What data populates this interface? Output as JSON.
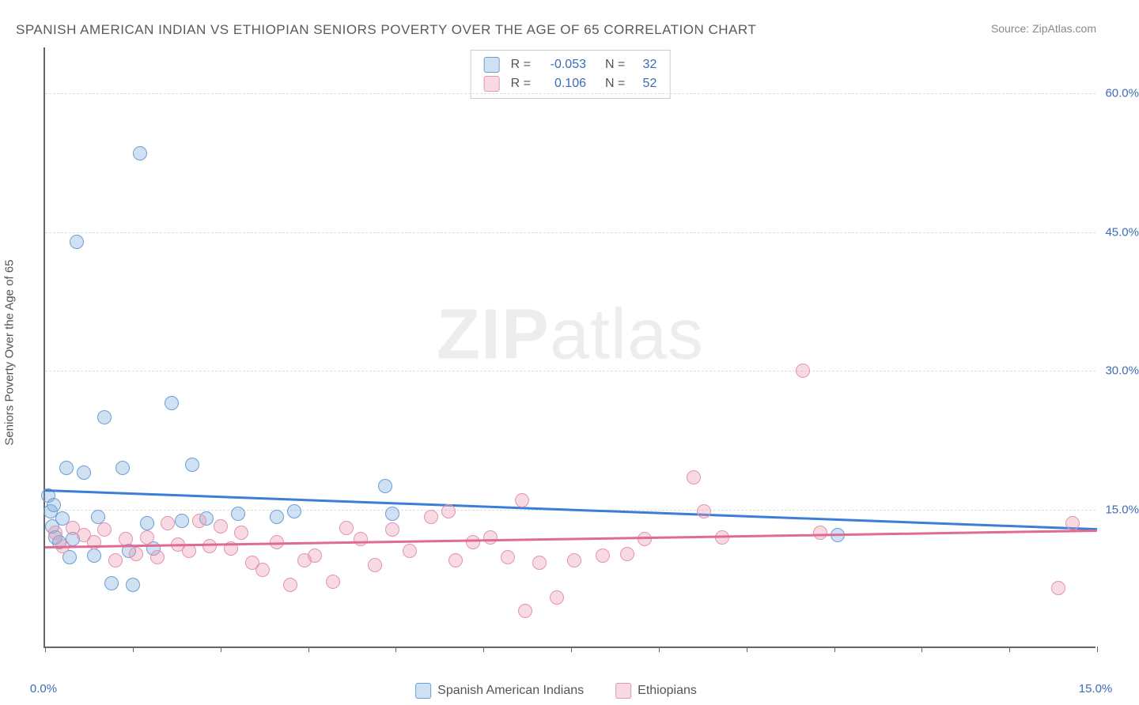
{
  "chart": {
    "type": "scatter",
    "title": "SPANISH AMERICAN INDIAN VS ETHIOPIAN SENIORS POVERTY OVER THE AGE OF 65 CORRELATION CHART",
    "source": "Source: ZipAtlas.com",
    "watermark_a": "ZIP",
    "watermark_b": "atlas",
    "y_axis_label": "Seniors Poverty Over the Age of 65",
    "xlim": [
      0,
      15
    ],
    "ylim": [
      0,
      65
    ],
    "x_tick_labels": {
      "start": "0.0%",
      "end": "15.0%"
    },
    "x_tick_positions": [
      0,
      1.25,
      2.5,
      3.75,
      5,
      6.25,
      7.5,
      8.75,
      10,
      11.25,
      12.5,
      13.75,
      15
    ],
    "y_gridlines": [
      15,
      30,
      45,
      60
    ],
    "y_tick_labels": [
      "15.0%",
      "30.0%",
      "45.0%",
      "60.0%"
    ],
    "background_color": "#ffffff",
    "grid_color": "#dddddd",
    "axis_color": "#666666",
    "label_color": "#3b6db5",
    "point_radius": 9,
    "series": [
      {
        "name": "Spanish American Indians",
        "fill": "rgba(120,170,220,0.35)",
        "stroke": "#6a9fd4",
        "line_color": "#3b7dd8",
        "r_value": "-0.053",
        "n_value": "32",
        "trend": {
          "y_start": 17.2,
          "y_end": 13.0
        },
        "points": [
          [
            0.05,
            16.5
          ],
          [
            0.08,
            14.8
          ],
          [
            0.1,
            13.2
          ],
          [
            0.12,
            15.5
          ],
          [
            0.15,
            12.0
          ],
          [
            0.2,
            11.5
          ],
          [
            0.25,
            14.0
          ],
          [
            0.3,
            19.5
          ],
          [
            0.35,
            9.8
          ],
          [
            0.45,
            44.0
          ],
          [
            0.55,
            19.0
          ],
          [
            0.7,
            10.0
          ],
          [
            0.75,
            14.2
          ],
          [
            0.85,
            25.0
          ],
          [
            0.95,
            7.0
          ],
          [
            1.1,
            19.5
          ],
          [
            1.2,
            10.5
          ],
          [
            1.25,
            6.8
          ],
          [
            1.35,
            53.5
          ],
          [
            1.45,
            13.5
          ],
          [
            1.55,
            10.8
          ],
          [
            1.8,
            26.5
          ],
          [
            1.95,
            13.8
          ],
          [
            2.1,
            19.8
          ],
          [
            2.3,
            14.0
          ],
          [
            2.75,
            14.5
          ],
          [
            3.3,
            14.2
          ],
          [
            3.55,
            14.8
          ],
          [
            4.85,
            17.5
          ],
          [
            4.95,
            14.5
          ],
          [
            11.3,
            12.2
          ],
          [
            0.4,
            11.8
          ]
        ]
      },
      {
        "name": "Ethiopians",
        "fill": "rgba(235,150,175,0.35)",
        "stroke": "#e394ae",
        "line_color": "#e06a94",
        "r_value": "0.106",
        "n_value": "52",
        "trend": {
          "y_start": 11.0,
          "y_end": 12.8
        },
        "points": [
          [
            0.15,
            12.5
          ],
          [
            0.25,
            11.0
          ],
          [
            0.4,
            13.0
          ],
          [
            0.55,
            12.2
          ],
          [
            0.7,
            11.5
          ],
          [
            0.85,
            12.8
          ],
          [
            1.0,
            9.5
          ],
          [
            1.15,
            11.8
          ],
          [
            1.3,
            10.2
          ],
          [
            1.45,
            12.0
          ],
          [
            1.6,
            9.8
          ],
          [
            1.75,
            13.5
          ],
          [
            1.9,
            11.2
          ],
          [
            2.05,
            10.5
          ],
          [
            2.2,
            13.8
          ],
          [
            2.35,
            11.0
          ],
          [
            2.5,
            13.2
          ],
          [
            2.65,
            10.8
          ],
          [
            2.8,
            12.5
          ],
          [
            2.95,
            9.2
          ],
          [
            3.1,
            8.5
          ],
          [
            3.3,
            11.5
          ],
          [
            3.5,
            6.8
          ],
          [
            3.7,
            9.5
          ],
          [
            3.85,
            10.0
          ],
          [
            4.1,
            7.2
          ],
          [
            4.3,
            13.0
          ],
          [
            4.5,
            11.8
          ],
          [
            4.7,
            9.0
          ],
          [
            4.95,
            12.8
          ],
          [
            5.2,
            10.5
          ],
          [
            5.5,
            14.2
          ],
          [
            5.75,
            14.8
          ],
          [
            5.85,
            9.5
          ],
          [
            6.1,
            11.5
          ],
          [
            6.35,
            12.0
          ],
          [
            6.6,
            9.8
          ],
          [
            6.8,
            16.0
          ],
          [
            6.85,
            4.0
          ],
          [
            7.05,
            9.2
          ],
          [
            7.3,
            5.5
          ],
          [
            7.55,
            9.5
          ],
          [
            7.95,
            10.0
          ],
          [
            8.3,
            10.2
          ],
          [
            8.55,
            11.8
          ],
          [
            9.25,
            18.5
          ],
          [
            9.4,
            14.8
          ],
          [
            9.65,
            12.0
          ],
          [
            10.8,
            30.0
          ],
          [
            11.05,
            12.5
          ],
          [
            14.45,
            6.5
          ],
          [
            14.65,
            13.5
          ]
        ]
      }
    ],
    "legend_labels": [
      "Spanish American Indians",
      "Ethiopians"
    ],
    "stats_labels": {
      "r": "R",
      "n": "N",
      "eq": "="
    }
  }
}
